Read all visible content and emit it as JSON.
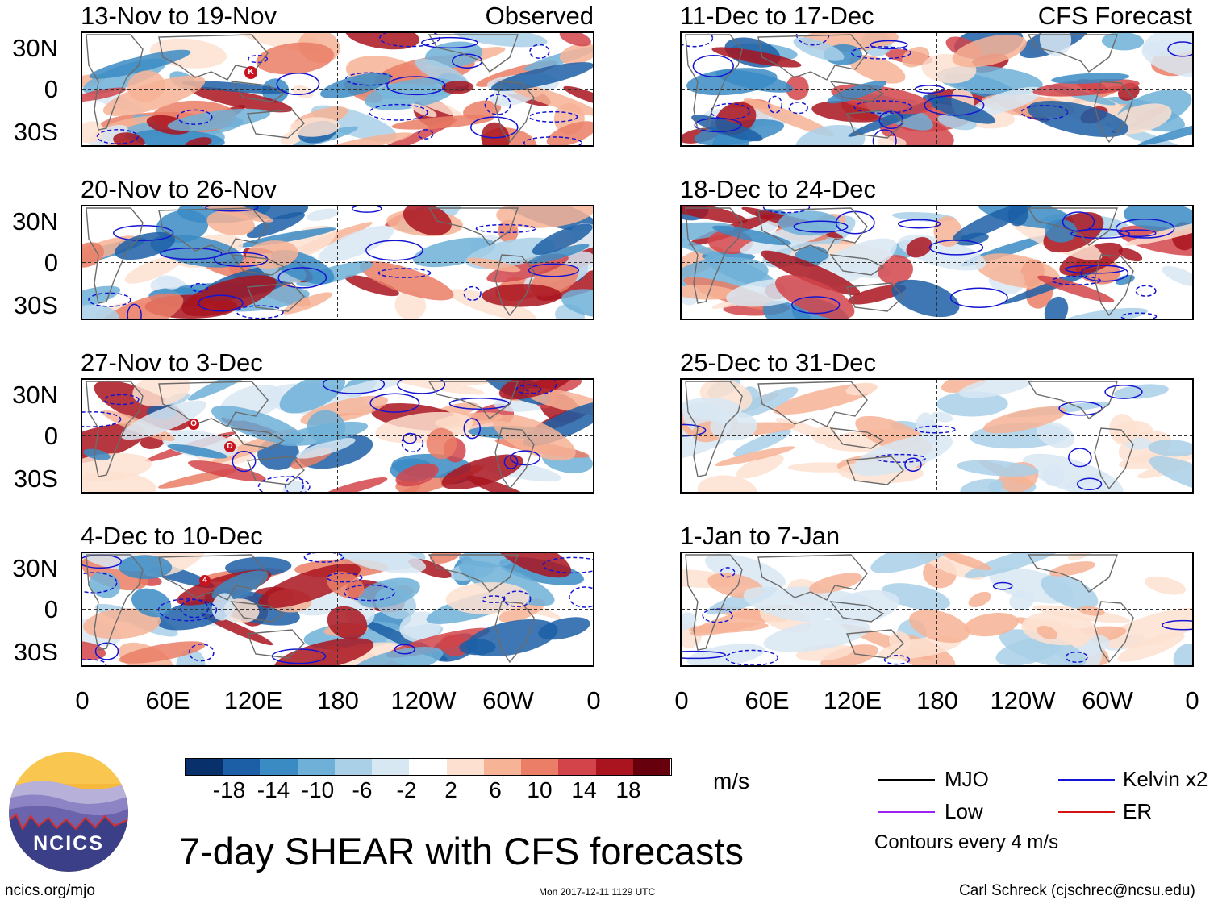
{
  "observed_label": "Observed",
  "forecast_label": "CFS Forecast",
  "panels": {
    "left": [
      "13-Nov to 19-Nov",
      "20-Nov to 26-Nov",
      "27-Nov to 3-Dec",
      "4-Dec to 10-Dec"
    ],
    "right": [
      "11-Dec to 17-Dec",
      "18-Dec to 24-Dec",
      "25-Dec to 31-Dec",
      "1-Jan to 7-Jan"
    ]
  },
  "y_axis_labels": [
    "30N",
    "0",
    "30S"
  ],
  "x_axis_labels": [
    "0",
    "60E",
    "120E",
    "180",
    "120W",
    "60W",
    "0"
  ],
  "storm_markers": {
    "p0": [
      "K"
    ],
    "p2": [
      "O",
      "D"
    ],
    "p3": [
      "4"
    ]
  },
  "colorbar": {
    "ticks": [
      "-18",
      "-14",
      "-10",
      "-6",
      "-2",
      "2",
      "6",
      "10",
      "14",
      "18"
    ],
    "colors": [
      "#08306b",
      "#1c5fa6",
      "#3a8bc4",
      "#6fb0d8",
      "#a9d0e7",
      "#d8e8f3",
      "#ffffff",
      "#fde0d0",
      "#f7b395",
      "#ea7e66",
      "#d2444a",
      "#a9141f",
      "#67000d"
    ],
    "units": "m/s"
  },
  "legend": {
    "items": [
      {
        "label": "MJO",
        "color": "#000000"
      },
      {
        "label": "Kelvin x2",
        "color": "#1414d2"
      },
      {
        "label": "Low",
        "color": "#a020f0"
      },
      {
        "label": "ER",
        "color": "#d21414"
      }
    ],
    "note": "Contours every 4 m/s"
  },
  "logo_text": "NCICS",
  "main_title": "7-day SHEAR with CFS forecasts",
  "footer": {
    "url": "ncics.org/mjo",
    "timestamp": "Mon 2017-12-11 1129 UTC",
    "credit": "Carl Schreck (cjschrec@ncsu.edu)"
  }
}
